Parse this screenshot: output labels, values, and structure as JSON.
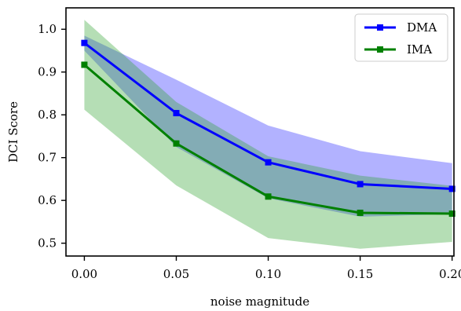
{
  "chart_data": {
    "type": "line",
    "xlabel": "noise magnitude",
    "ylabel": "DCI Score",
    "x": [
      0.0,
      0.05,
      0.1,
      0.15,
      0.2
    ],
    "x_tick_labels": [
      "0.00",
      "0.05",
      "0.10",
      "0.15",
      "0.20"
    ],
    "xlim": [
      -0.01,
      0.201
    ],
    "y_ticks": [
      0.5,
      0.6,
      0.7,
      0.8,
      0.9,
      1.0
    ],
    "y_tick_labels": [
      "0.5",
      "0.6",
      "0.7",
      "0.8",
      "0.9",
      "1.0"
    ],
    "ylim": [
      0.47,
      1.05
    ],
    "grid": false,
    "legend_position": "top-right",
    "series": [
      {
        "name": "DMA",
        "color": "#0000ff",
        "band_color": "#0000ff",
        "values": [
          0.968,
          0.804,
          0.689,
          0.638,
          0.627
        ],
        "lower": [
          0.95,
          0.725,
          0.605,
          0.562,
          0.568
        ],
        "upper": [
          0.985,
          0.882,
          0.775,
          0.715,
          0.687
        ]
      },
      {
        "name": "IMA",
        "color": "#008000",
        "band_color": "#2ca02c",
        "values": [
          0.917,
          0.733,
          0.609,
          0.571,
          0.569
        ],
        "lower": [
          0.812,
          0.635,
          0.512,
          0.487,
          0.503
        ],
        "upper": [
          1.022,
          0.83,
          0.703,
          0.658,
          0.634
        ]
      }
    ]
  }
}
